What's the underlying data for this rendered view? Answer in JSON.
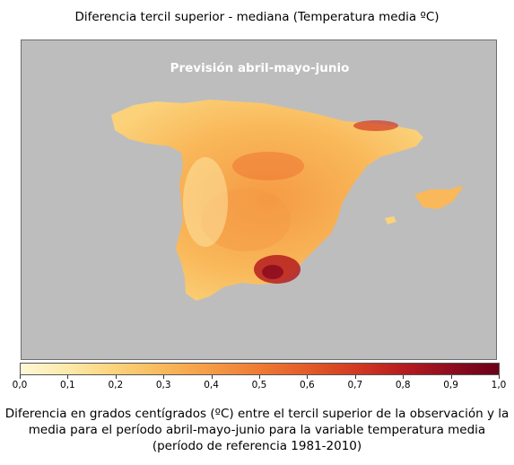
{
  "title": "Diferencia tercil superior - mediana (Temperatura media ºC)",
  "map": {
    "forecast_label": "Previsión abril-mayo-junio",
    "background_color": "#bdbdbd"
  },
  "colorbar": {
    "min": 0.0,
    "max": 1.0,
    "ticks": [
      "0,0",
      "0,1",
      "0,2",
      "0,3",
      "0,4",
      "0,5",
      "0,6",
      "0,7",
      "0,8",
      "0,9",
      "1,0"
    ],
    "colors": [
      "#fff8d6",
      "#fde9a8",
      "#fbd27a",
      "#f9b85a",
      "#f59a45",
      "#ee7a34",
      "#e35b2a",
      "#d23b22",
      "#b61d1f",
      "#8e0d1f",
      "#6b0018"
    ]
  },
  "caption": {
    "line1": "Diferencia en grados centígrados (ºC) entre el tercil superior de la observación y la",
    "line2": "media para el período abril-mayo-junio para la variable temperatura media",
    "line3": "(período de referencia 1981-2010)"
  }
}
